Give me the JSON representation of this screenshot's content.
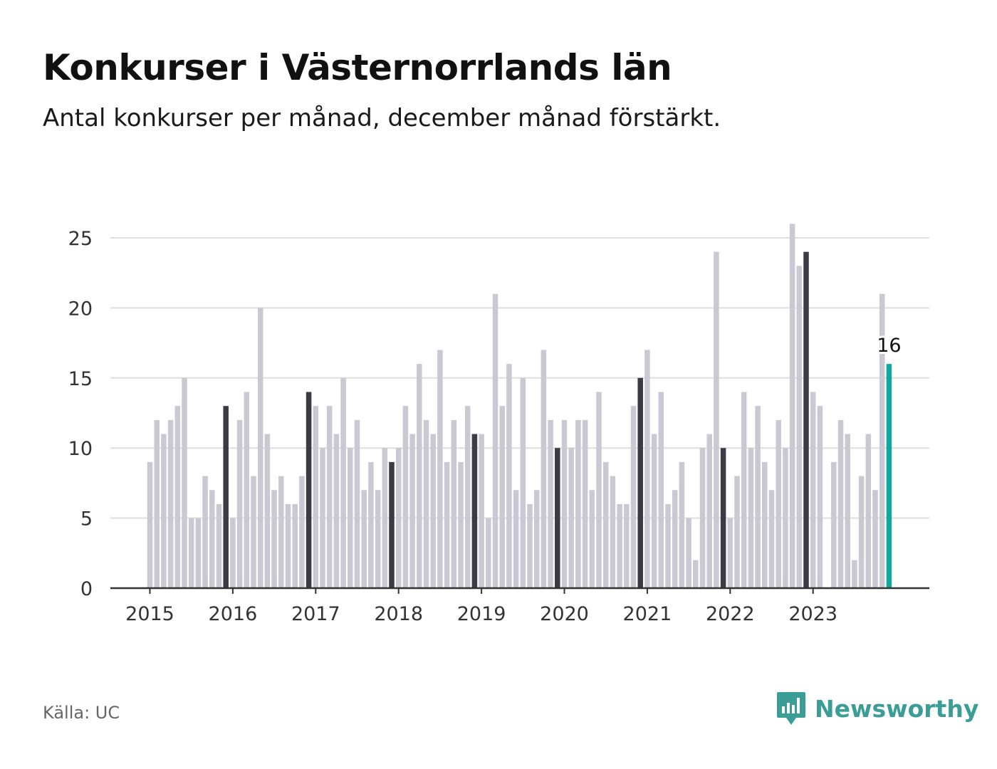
{
  "header": {
    "title": "Konkurser i Västernorrlands län",
    "subtitle": "Antal konkurser per månad, december månad förstärkt."
  },
  "footer": {
    "source": "Källa: UC",
    "brand": "Newsworthy"
  },
  "colors": {
    "bar": "#c9c8d3",
    "december": "#3b3a45",
    "latest": "#12a79d",
    "grid": "#dedede",
    "axis": "#333333",
    "brand": "#3a9e97"
  },
  "chart_data": {
    "type": "bar",
    "title": "Konkurser i Västernorrlands län",
    "subtitle": "Antal konkurser per månad, december månad förstärkt.",
    "ylim": [
      0,
      25
    ],
    "yticks": [
      0,
      5,
      10,
      15,
      20,
      25
    ],
    "xticks": [
      "2015",
      "2016",
      "2017",
      "2018",
      "2019",
      "2020",
      "2021",
      "2022",
      "2023"
    ],
    "grid": true,
    "start_month": "2015-01",
    "highlight_label": "16",
    "series": [
      {
        "years": [
          {
            "year": "2015",
            "values": [
              9,
              12,
              11,
              12,
              13,
              15,
              5,
              5,
              8,
              7,
              6,
              13
            ]
          },
          {
            "year": "2016",
            "values": [
              5,
              12,
              14,
              8,
              20,
              11,
              7,
              8,
              6,
              6,
              8,
              14
            ]
          },
          {
            "year": "2017",
            "values": [
              13,
              10,
              13,
              11,
              15,
              10,
              12,
              7,
              9,
              7,
              10,
              9
            ]
          },
          {
            "year": "2018",
            "values": [
              10,
              13,
              11,
              16,
              12,
              11,
              17,
              9,
              12,
              9,
              13,
              11
            ]
          },
          {
            "year": "2019",
            "values": [
              11,
              5,
              21,
              13,
              16,
              7,
              15,
              6,
              7,
              17,
              12,
              10
            ]
          },
          {
            "year": "2020",
            "values": [
              12,
              10,
              12,
              12,
              7,
              14,
              9,
              8,
              6,
              6,
              13,
              15
            ]
          },
          {
            "year": "2021",
            "values": [
              17,
              11,
              14,
              6,
              7,
              9,
              5,
              2,
              10,
              11,
              24,
              10
            ]
          },
          {
            "year": "2022",
            "values": [
              5,
              8,
              14,
              10,
              13,
              9,
              7,
              12,
              10,
              26,
              23,
              24
            ]
          },
          {
            "year": "2023",
            "values": [
              14,
              13,
              0,
              9,
              12,
              11,
              2,
              8,
              11,
              7,
              21,
              16
            ]
          }
        ]
      }
    ]
  }
}
